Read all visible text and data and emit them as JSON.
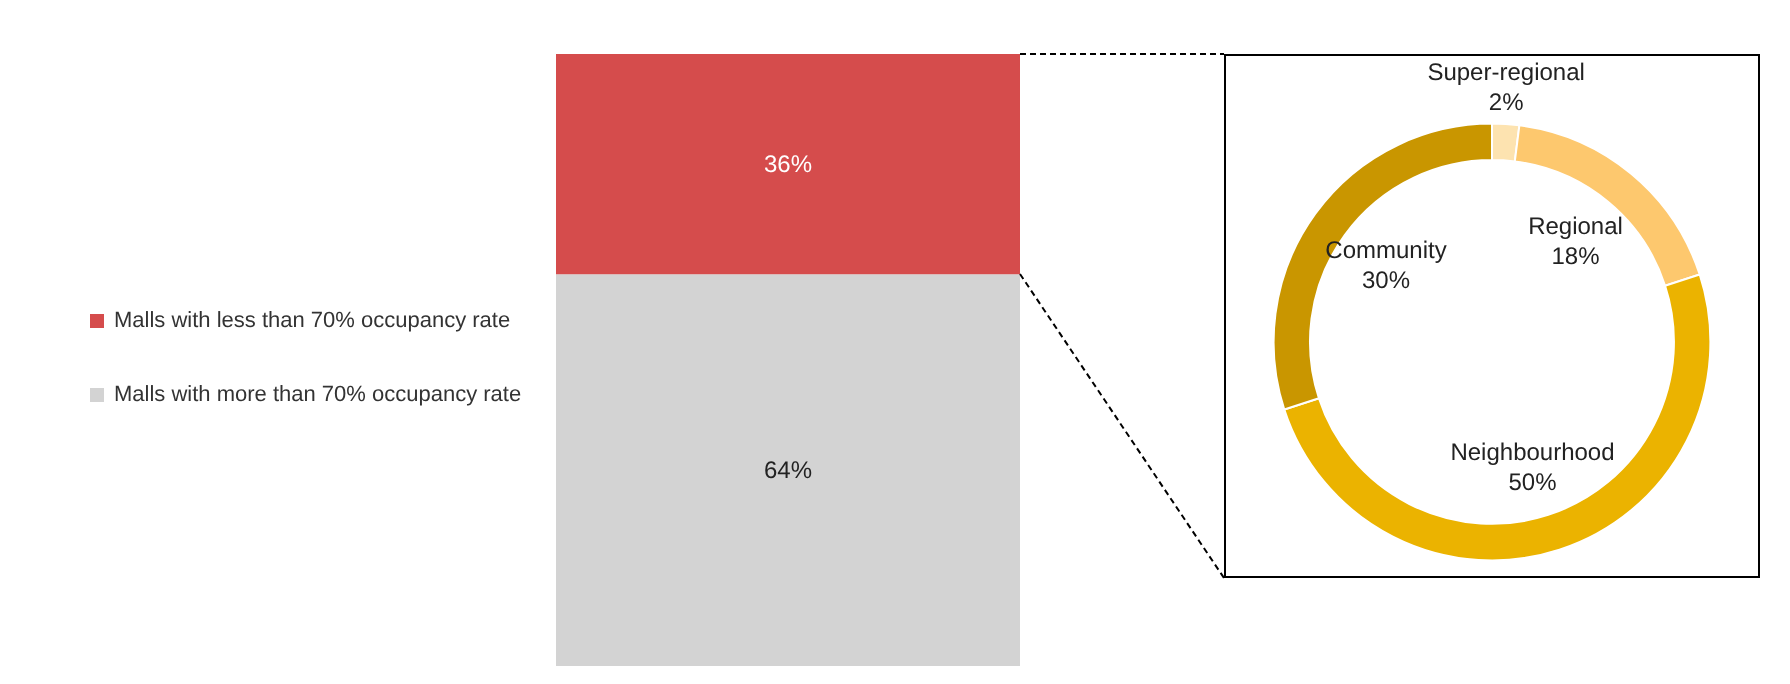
{
  "chart_data": [
    {
      "type": "bar",
      "categories": [
        null
      ],
      "stacked": true,
      "legend": "left",
      "series": [
        {
          "name": "Malls with more than 70% occupancy rate",
          "color": "#d3d3d3",
          "values": [
            64
          ],
          "value_labels": [
            "64%"
          ]
        },
        {
          "name": "Malls with less than 70% occupancy rate",
          "color": "#d54c4c",
          "values": [
            36
          ],
          "value_labels": [
            "36%"
          ]
        }
      ]
    },
    {
      "type": "donut",
      "categories": [
        "Super-regional",
        "Regional",
        "Neighbourhood",
        "Community"
      ],
      "values": [
        2,
        18,
        50,
        30
      ],
      "colors": [
        "#fde3b0",
        "#fdc86e",
        "#ebb300",
        "#c99600"
      ],
      "value_labels": [
        "2%",
        "18%",
        "50%",
        "30%"
      ],
      "legend": false
    }
  ]
}
